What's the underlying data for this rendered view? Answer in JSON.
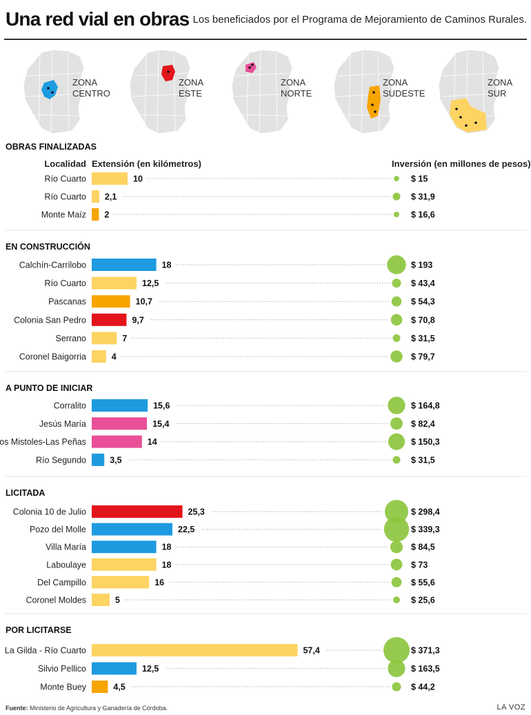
{
  "header": {
    "title": "Una red vial en obras",
    "subtitle": "Los beneficiados por el Programa de Mejoramiento de Caminos Rurales."
  },
  "colors": {
    "centro": "#1e9be0",
    "este": "#e3141c",
    "norte": "#ea4f98",
    "sudeste": "#f7a500",
    "sur": "#fdd462",
    "inversion": "#8dc63f",
    "map_base": "#e2e2e2"
  },
  "zones": [
    {
      "line1": "ZONA",
      "line2": "CENTRO",
      "color": "#1e9be0"
    },
    {
      "line1": "ZONA",
      "line2": "ESTE",
      "color": "#e3141c"
    },
    {
      "line1": "ZONA",
      "line2": "NORTE",
      "color": "#ea4f98"
    },
    {
      "line1": "ZONA",
      "line2": "SUDESTE",
      "color": "#f7a500"
    },
    {
      "line1": "ZONA",
      "line2": "SUR",
      "color": "#fdd462"
    }
  ],
  "chart_data": {
    "type": "bar",
    "column_headers": {
      "localidad": "Localidad",
      "extension": "Extensión (en kilómetros)",
      "inversion": "Inversión (en millones de pesos)"
    },
    "groups": [
      {
        "name": "OBRAS FINALIZADAS",
        "rows": [
          {
            "localidad": "Río Cuarto",
            "km": 10,
            "km_label": "10",
            "zone": "sur",
            "inversion": 15,
            "inv_label": "$ 15"
          },
          {
            "localidad": "Río Cuarto",
            "km": 2.1,
            "km_label": "2,1",
            "zone": "sur",
            "inversion": 31.9,
            "inv_label": "$ 31,9"
          },
          {
            "localidad": "Monte Maíz",
            "km": 2,
            "km_label": "2",
            "zone": "sudeste",
            "inversion": 16.6,
            "inv_label": "$ 16,6"
          }
        ]
      },
      {
        "name": "EN CONSTRUCCIÓN",
        "rows": [
          {
            "localidad": "Calchín-Carrilobo",
            "km": 18,
            "km_label": "18",
            "zone": "centro",
            "inversion": 193,
            "inv_label": "$ 193"
          },
          {
            "localidad": "Río Cuarto",
            "km": 12.5,
            "km_label": "12,5",
            "zone": "sur",
            "inversion": 43.4,
            "inv_label": "$ 43,4"
          },
          {
            "localidad": "Pascanas",
            "km": 10.7,
            "km_label": "10,7",
            "zone": "sudeste",
            "inversion": 54.3,
            "inv_label": "$ 54,3"
          },
          {
            "localidad": "Colonia San Pedro",
            "km": 9.7,
            "km_label": "9,7",
            "zone": "este",
            "inversion": 70.8,
            "inv_label": "$ 70,8"
          },
          {
            "localidad": "Serrano",
            "km": 7,
            "km_label": "7",
            "zone": "sur",
            "inversion": 31.5,
            "inv_label": "$ 31,5"
          },
          {
            "localidad": "Coronel Baigorria",
            "km": 4,
            "km_label": "4",
            "zone": "sur",
            "inversion": 79.7,
            "inv_label": "$ 79,7"
          }
        ]
      },
      {
        "name": "A PUNTO DE INICIAR",
        "rows": [
          {
            "localidad": "Corralito",
            "km": 15.6,
            "km_label": "15,6",
            "zone": "centro",
            "inversion": 164.8,
            "inv_label": "$ 164,8"
          },
          {
            "localidad": "Jesús María",
            "km": 15.4,
            "km_label": "15,4",
            "zone": "norte",
            "inversion": 82.4,
            "inv_label": "$ 82,4"
          },
          {
            "localidad": "Los Mistoles-Las Peñas",
            "km": 14,
            "km_label": "14",
            "zone": "norte",
            "inversion": 150.3,
            "inv_label": "$ 150,3"
          },
          {
            "localidad": "Río Segundo",
            "km": 3.5,
            "km_label": "3,5",
            "zone": "centro",
            "inversion": 31.5,
            "inv_label": "$ 31,5"
          }
        ]
      },
      {
        "name": "LICITADA",
        "rows": [
          {
            "localidad": "Colonia 10 de Julio",
            "km": 25.3,
            "km_label": "25,3",
            "zone": "este",
            "inversion": 298.4,
            "inv_label": "$ 298,4"
          },
          {
            "localidad": "Pozo del Molle",
            "km": 22.5,
            "km_label": "22,5",
            "zone": "centro",
            "inversion": 339.3,
            "inv_label": "$ 339,3"
          },
          {
            "localidad": "Villa María",
            "km": 18,
            "km_label": "18",
            "zone": "centro",
            "inversion": 84.5,
            "inv_label": "$ 84,5"
          },
          {
            "localidad": "Laboulaye",
            "km": 18,
            "km_label": "18",
            "zone": "sur",
            "inversion": 73,
            "inv_label": "$ 73"
          },
          {
            "localidad": "Del Campillo",
            "km": 16,
            "km_label": "16",
            "zone": "sur",
            "inversion": 55.6,
            "inv_label": "$ 55,6"
          },
          {
            "localidad": "Coronel Moldes",
            "km": 5,
            "km_label": "5",
            "zone": "sur",
            "inversion": 25.6,
            "inv_label": "$ 25,6"
          }
        ]
      },
      {
        "name": "POR LICITARSE",
        "rows": [
          {
            "localidad": "La Gilda - Río Cuarto",
            "km": 57.4,
            "km_label": "57,4",
            "zone": "sur",
            "inversion": 371.3,
            "inv_label": "$ 371,3"
          },
          {
            "localidad": "Silvio Pellico",
            "km": 12.5,
            "km_label": "12,5",
            "zone": "centro",
            "inversion": 163.5,
            "inv_label": "$ 163,5"
          },
          {
            "localidad": "Monte Buey",
            "km": 4.5,
            "km_label": "4,5",
            "zone": "sudeste",
            "inversion": 44.2,
            "inv_label": "$ 44,2"
          }
        ]
      }
    ]
  },
  "footer": {
    "source_label": "Fuente:",
    "source_text": " Ministerio de Agricultura y Ganadería de Córdoba.",
    "brand": "LA VOZ"
  }
}
